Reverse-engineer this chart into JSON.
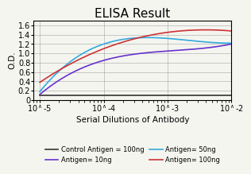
{
  "title": "ELISA Result",
  "ylabel": "O.D.",
  "xlabel": "Serial Dilutions of Antibody",
  "x_values": [
    0.01,
    0.001,
    0.0001,
    1e-05
  ],
  "control_antigen": {
    "label": "Control Antigen = 100ng",
    "color": "#333333",
    "y": [
      0.1,
      0.1,
      0.1,
      0.1
    ]
  },
  "antigen_10ng": {
    "label": "Antigen= 10ng",
    "color": "#6633cc",
    "y": [
      1.2,
      1.05,
      0.85,
      0.12
    ]
  },
  "antigen_50ng": {
    "label": "Antigen= 50ng",
    "color": "#33aadd",
    "y": [
      1.22,
      1.32,
      1.2,
      0.18
    ]
  },
  "antigen_100ng": {
    "label": "Antigen= 100ng",
    "color": "#cc3333",
    "y": [
      1.48,
      1.45,
      1.1,
      0.38
    ]
  },
  "ylim": [
    0,
    1.7
  ],
  "yticks": [
    0,
    0.2,
    0.4,
    0.6,
    0.8,
    1.0,
    1.2,
    1.4,
    1.6
  ],
  "bg_color": "#f5f5f0",
  "title_fontsize": 11,
  "label_fontsize": 7.5,
  "tick_fontsize": 7,
  "legend_fontsize": 6
}
